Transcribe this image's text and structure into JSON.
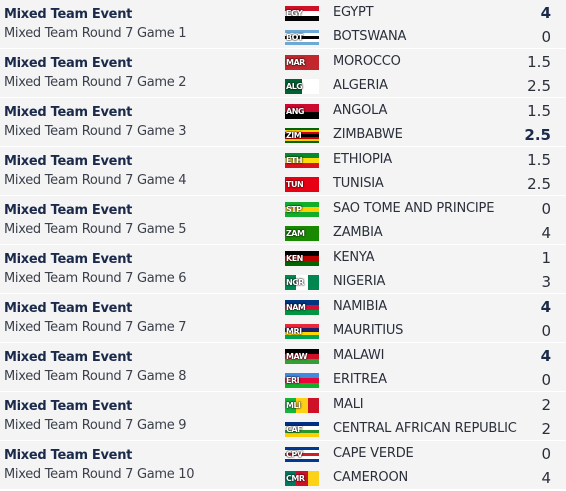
{
  "matches": [
    {
      "event": "Mixed Team Event",
      "round": "Mixed Team Round 7 Game 1",
      "teams": [
        {
          "code": "EGY",
          "name": "EGYPT",
          "score": "4",
          "bold": true
        },
        {
          "code": "BOT",
          "name": "BOTSWANA",
          "score": "0",
          "bold": false
        }
      ]
    },
    {
      "event": "Mixed Team Event",
      "round": "Mixed Team Round 7 Game 2",
      "teams": [
        {
          "code": "MAR",
          "name": "MOROCCO",
          "score": "1.5",
          "bold": false
        },
        {
          "code": "ALG",
          "name": "ALGERIA",
          "score": "2.5",
          "bold": false
        }
      ]
    },
    {
      "event": "Mixed Team Event",
      "round": "Mixed Team Round 7 Game 3",
      "teams": [
        {
          "code": "ANG",
          "name": "ANGOLA",
          "score": "1.5",
          "bold": false
        },
        {
          "code": "ZIM",
          "name": "ZIMBABWE",
          "score": "2.5",
          "bold": true
        }
      ]
    },
    {
      "event": "Mixed Team Event",
      "round": "Mixed Team Round 7 Game 4",
      "teams": [
        {
          "code": "ETH",
          "name": "ETHIOPIA",
          "score": "1.5",
          "bold": false
        },
        {
          "code": "TUN",
          "name": "TUNISIA",
          "score": "2.5",
          "bold": false
        }
      ]
    },
    {
      "event": "Mixed Team Event",
      "round": "Mixed Team Round 7 Game 5",
      "teams": [
        {
          "code": "STP",
          "name": "SAO TOME AND PRINCIPE",
          "score": "0",
          "bold": false
        },
        {
          "code": "ZAM",
          "name": "ZAMBIA",
          "score": "4",
          "bold": false
        }
      ]
    },
    {
      "event": "Mixed Team Event",
      "round": "Mixed Team Round 7 Game 6",
      "teams": [
        {
          "code": "KEN",
          "name": "KENYA",
          "score": "1",
          "bold": false
        },
        {
          "code": "NGR",
          "name": "NIGERIA",
          "score": "3",
          "bold": false
        }
      ]
    },
    {
      "event": "Mixed Team Event",
      "round": "Mixed Team Round 7 Game 7",
      "teams": [
        {
          "code": "NAM",
          "name": "NAMIBIA",
          "score": "4",
          "bold": true
        },
        {
          "code": "MRI",
          "name": "MAURITIUS",
          "score": "0",
          "bold": false
        }
      ]
    },
    {
      "event": "Mixed Team Event",
      "round": "Mixed Team Round 7 Game 8",
      "teams": [
        {
          "code": "MAW",
          "name": "MALAWI",
          "score": "4",
          "bold": true
        },
        {
          "code": "ERI",
          "name": "ERITREA",
          "score": "0",
          "bold": false
        }
      ]
    },
    {
      "event": "Mixed Team Event",
      "round": "Mixed Team Round 7 Game 9",
      "teams": [
        {
          "code": "MLI",
          "name": "MALI",
          "score": "2",
          "bold": false
        },
        {
          "code": "CAF",
          "name": "CENTRAL AFRICAN REPUBLIC",
          "score": "2",
          "bold": false
        }
      ]
    },
    {
      "event": "Mixed Team Event",
      "round": "Mixed Team Round 7 Game 10",
      "teams": [
        {
          "code": "CPV",
          "name": "CAPE VERDE",
          "score": "0",
          "bold": false
        },
        {
          "code": "CMR",
          "name": "CAMEROON",
          "score": "4",
          "bold": false
        }
      ]
    }
  ]
}
